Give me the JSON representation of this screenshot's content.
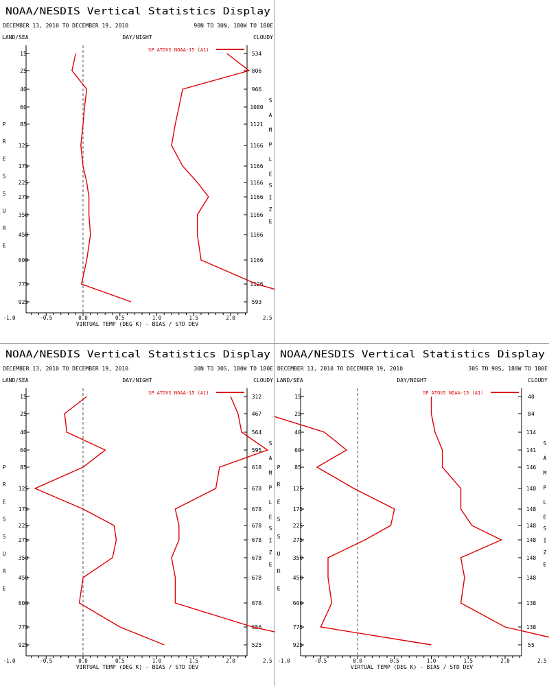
{
  "chart_data": [
    {
      "type": "line",
      "title": "NOAA/NESDIS Vertical Statistics Display",
      "date_range": "DECEMBER 13, 2010 TO DECEMBER 19, 2010",
      "region": "90N TO 30N, 180W TO 180E",
      "header_left": "LAND/SEA",
      "header_center": "DAY/NIGHT",
      "header_right": "CLOUDY",
      "ylabel": "PRESSURE",
      "right_label": "SAMPLE SIZE",
      "xlabel": "VIRTUAL TEMP (DEG K) - BIAS / STD DEV",
      "xlim": [
        -1.5,
        4.5
      ],
      "x_ticks": [
        "-1.0",
        "-0.5",
        "0.0",
        "0.5",
        "1.0",
        "1.5",
        "2.0",
        "2.5",
        "3.0",
        "3.5",
        "4.0"
      ],
      "levels": [
        "15",
        "25",
        "40",
        "60",
        "85",
        "125",
        "175",
        "225",
        "275",
        "350",
        "450",
        "600",
        "775",
        "925"
      ],
      "sample_size": [
        "534",
        "806",
        "966",
        "1080",
        "1121",
        "1166",
        "1166",
        "1166",
        "1166",
        "1166",
        "1166",
        "1166",
        "1126",
        "593"
      ],
      "legend": "SP ATOVS NOAA-15 (A1)",
      "series": [
        {
          "bias_values": [
            -0.1,
            -0.15,
            0.05,
            0.02,
            0.0,
            -0.03,
            0.0,
            0.05,
            0.08,
            0.08,
            0.1,
            0.05,
            -0.02,
            0.65
          ]
        },
        {
          "std_values": [
            1.95,
            2.25,
            1.35,
            1.3,
            1.25,
            1.2,
            1.35,
            1.55,
            1.7,
            1.55,
            1.55,
            1.6,
            2.35,
            3.2
          ]
        }
      ],
      "color": "#e00000"
    },
    {
      "type": "line",
      "title": "NOAA/NESDIS Vertical Statistics Display",
      "date_range": "DECEMBER 13, 2010 TO DECEMBER 19, 2010",
      "region": "30N TO 30S, 180W TO 180E",
      "header_left": "LAND/SEA",
      "header_center": "DAY/NIGHT",
      "header_right": "CLOUDY",
      "ylabel": "PRESSURE",
      "right_label": "SAMPLE SIZE",
      "xlabel": "VIRTUAL TEMP (DEG K) - BIAS / STD DEV",
      "xlim": [
        -1.5,
        4.5
      ],
      "x_ticks": [
        "-1.0",
        "-0.5",
        "0.0",
        "0.5",
        "1.0",
        "1.5",
        "2.0",
        "2.5",
        "3.0",
        "3.5",
        "4.0"
      ],
      "levels": [
        "15",
        "25",
        "40",
        "60",
        "85",
        "125",
        "175",
        "225",
        "275",
        "350",
        "450",
        "600",
        "775",
        "925"
      ],
      "sample_size": [
        "312",
        "467",
        "564",
        "595",
        "618",
        "678",
        "678",
        "678",
        "678",
        "678",
        "678",
        "678",
        "656",
        "525"
      ],
      "legend": "SP ATOVS NOAA-15 (A1)",
      "series": [
        {
          "bias_values": [
            0.05,
            -0.25,
            -0.22,
            0.3,
            0.0,
            -0.65,
            0.0,
            0.42,
            0.45,
            0.4,
            0.0,
            -0.05,
            0.5,
            1.1
          ]
        },
        {
          "std_values": [
            2.0,
            2.1,
            2.15,
            2.5,
            1.85,
            1.8,
            1.25,
            1.3,
            1.3,
            1.2,
            1.25,
            1.25,
            2.3,
            3.4
          ]
        }
      ],
      "color": "#e00000"
    },
    {
      "type": "line",
      "title": "NOAA/NESDIS Vertical Statistics Display",
      "date_range": "DECEMBER 13, 2010 TO DECEMBER 19, 2010",
      "region": "30S TO 90S, 180W TO 180E",
      "header_left": "LAND/SEA",
      "header_center": "DAY/NIGHT",
      "header_right": "CLOUDY",
      "ylabel": "PRESSURE",
      "right_label": "SAMPLE SIZE",
      "xlabel": "VIRTUAL TEMP (DEG K) - BIAS / STD DEV",
      "xlim": [
        -1.5,
        4.5
      ],
      "x_ticks": [
        "-1.0",
        "-0.5",
        "0.0",
        "0.5",
        "1.0",
        "1.5",
        "2.0",
        "2.5",
        "3.0",
        "3.5",
        "4.0"
      ],
      "levels": [
        "15",
        "25",
        "40",
        "60",
        "85",
        "125",
        "175",
        "225",
        "275",
        "350",
        "450",
        "600",
        "775",
        "925"
      ],
      "sample_size": [
        "40",
        "84",
        "114",
        "141",
        "146",
        "148",
        "148",
        "148",
        "148",
        "148",
        "148",
        "138",
        "138",
        "55"
      ],
      "legend": "SP ATOVS NOAA-15 (A1)",
      "series": [
        {
          "bias_values": [
            -1.15,
            -1.25,
            -0.45,
            -0.15,
            -0.55,
            -0.05,
            0.5,
            0.45,
            0.1,
            -0.4,
            -0.4,
            -0.35,
            -0.5,
            1.0
          ]
        },
        {
          "std_values": [
            1.0,
            1.0,
            1.05,
            1.15,
            1.15,
            1.4,
            1.4,
            1.55,
            1.95,
            1.4,
            1.45,
            1.4,
            2.0,
            3.05
          ]
        }
      ],
      "color": "#e00000"
    }
  ]
}
